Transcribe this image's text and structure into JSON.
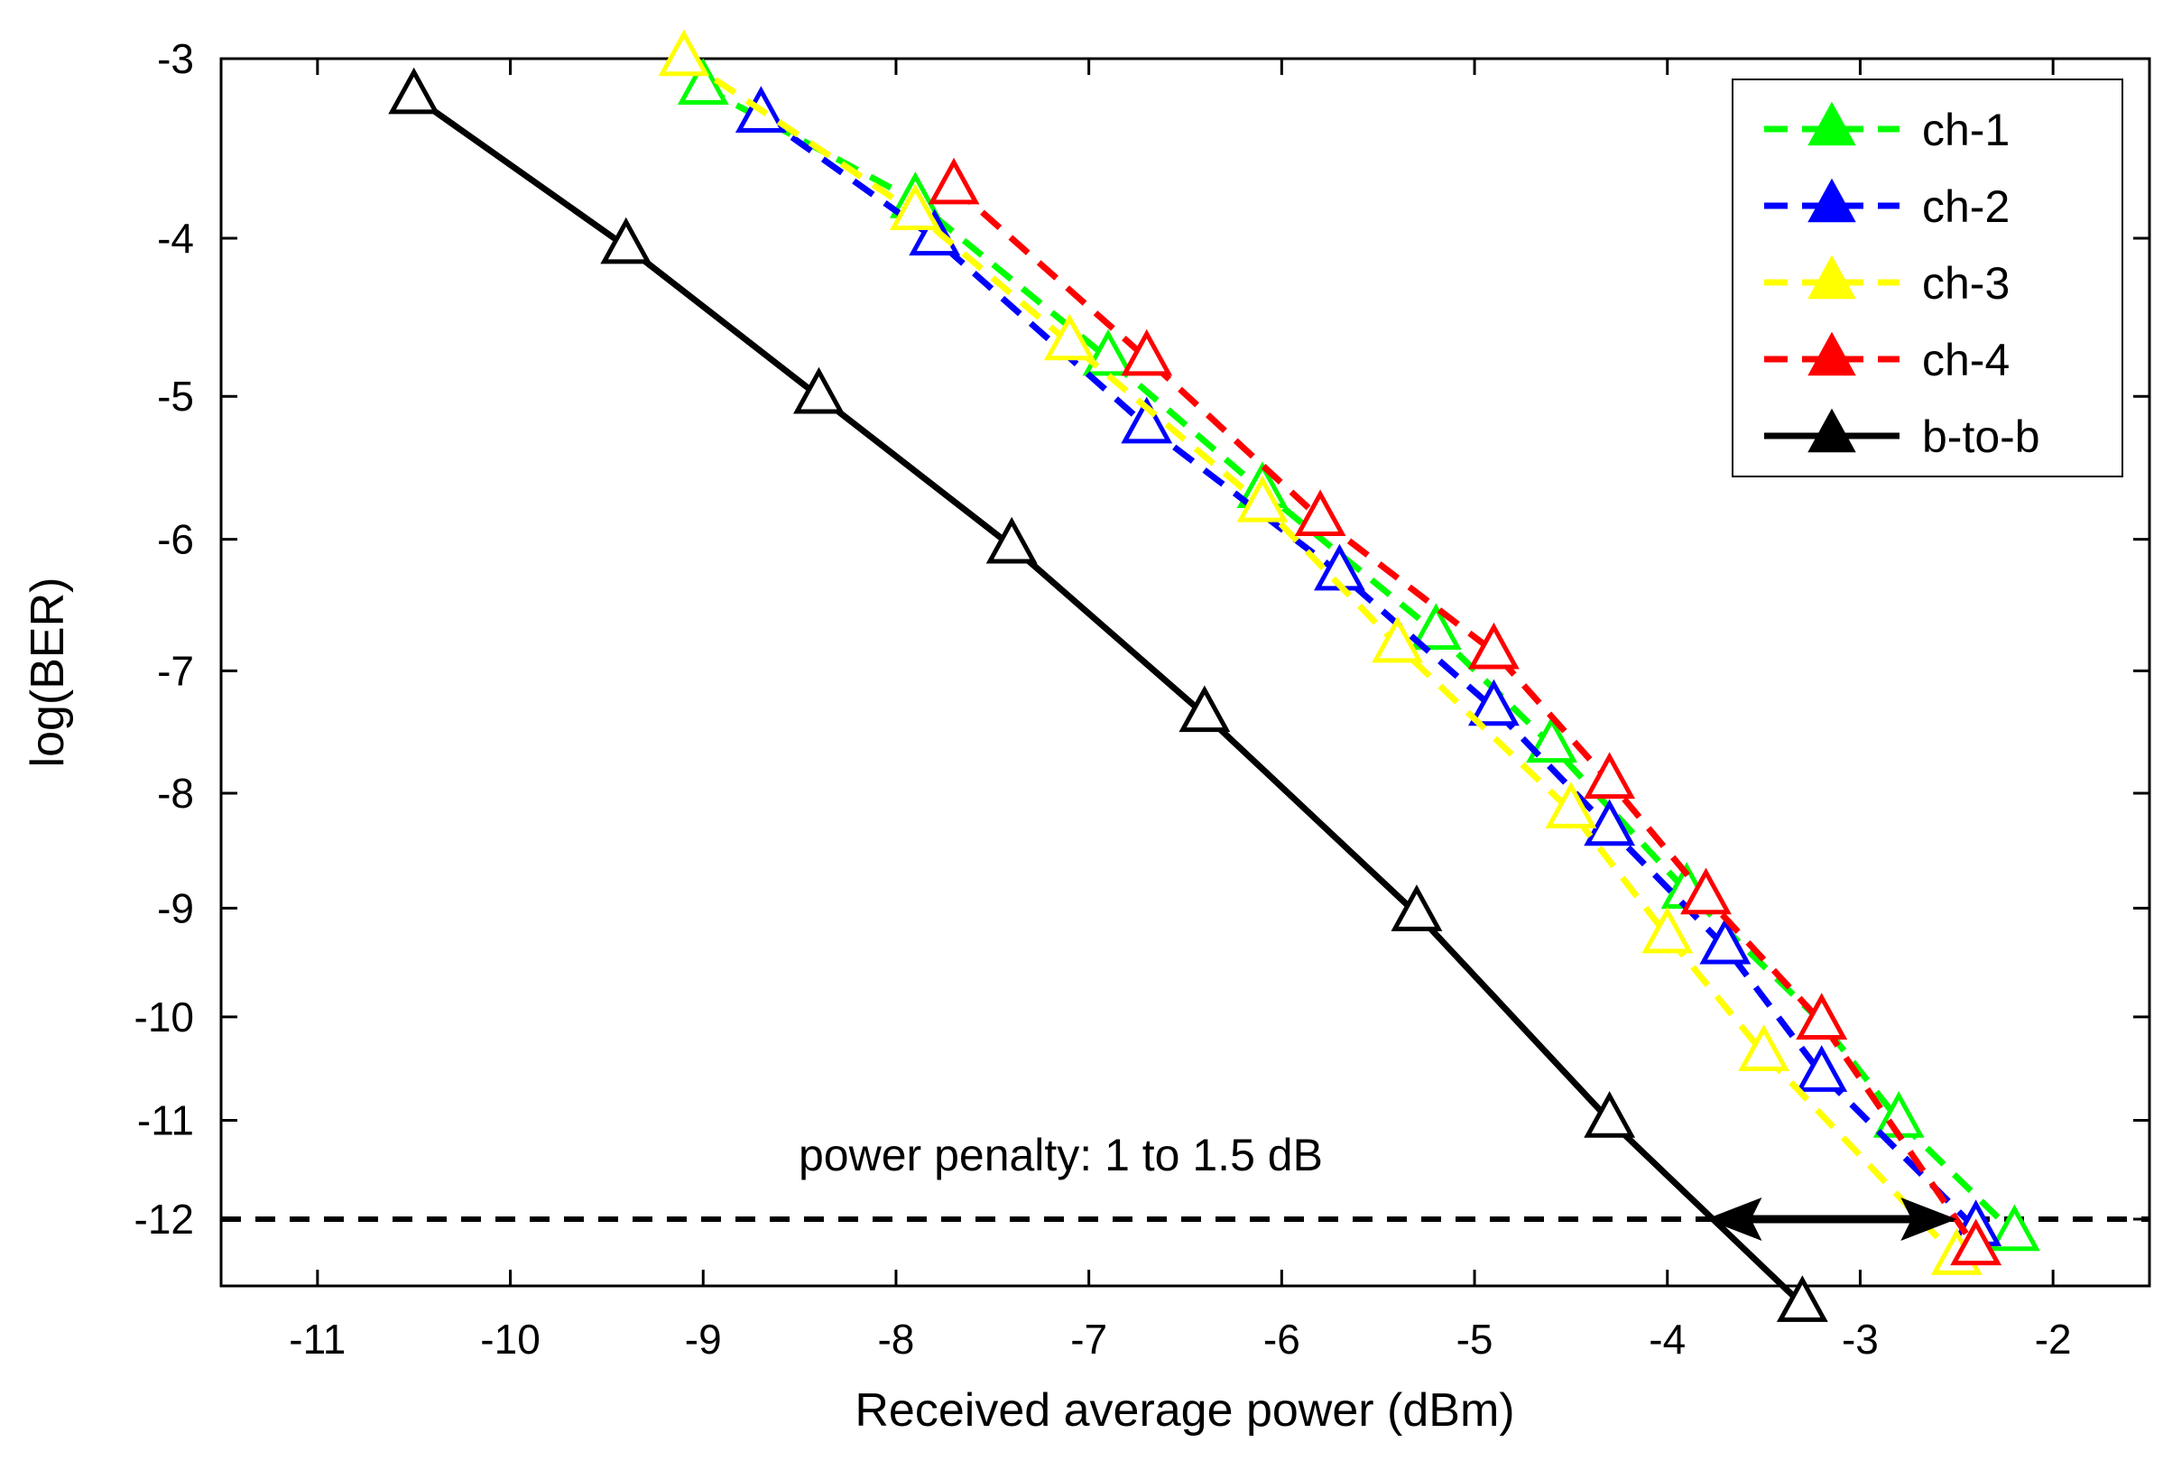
{
  "chart_data": {
    "type": "line",
    "title": "",
    "xlabel": "Received average power (dBm)",
    "ylabel": "log(BER)",
    "xlim": [
      -11.5,
      -1.5
    ],
    "xticks": [
      -11,
      -10,
      -9,
      -8,
      -7,
      -6,
      -5,
      -4,
      -3,
      -2
    ],
    "yticks": [
      -3,
      -4,
      -5,
      -6,
      -7,
      -8,
      -9,
      -10,
      -11,
      -12
    ],
    "grid": false,
    "legend_position": "top-right",
    "series": [
      {
        "name": "ch-1",
        "color": "#00ff00",
        "dash": "dashed",
        "x": [
          -9.0,
          -7.9,
          -6.9,
          -6.1,
          -5.2,
          -4.6,
          -3.9,
          -3.2,
          -2.8,
          -2.2
        ],
        "y": [
          -3.15,
          -3.78,
          -4.75,
          -5.65,
          -6.7,
          -7.6,
          -8.85,
          -10.05,
          -11.0,
          -12.15
        ]
      },
      {
        "name": "ch-2",
        "color": "#0000ff",
        "dash": "dashed",
        "x": [
          -8.7,
          -7.8,
          -6.7,
          -5.7,
          -4.9,
          -4.3,
          -3.7,
          -3.2,
          -2.4
        ],
        "y": [
          -3.3,
          -4.0,
          -5.2,
          -6.25,
          -7.3,
          -8.3,
          -9.35,
          -10.55,
          -12.1
        ]
      },
      {
        "name": "ch-3",
        "color": "#ffff00",
        "dash": "dashed",
        "x": [
          -9.1,
          -7.9,
          -7.1,
          -6.1,
          -5.4,
          -4.5,
          -4.0,
          -3.5,
          -2.5
        ],
        "y": [
          -3.0,
          -3.85,
          -4.65,
          -5.75,
          -6.8,
          -8.15,
          -9.25,
          -10.35,
          -12.4
        ]
      },
      {
        "name": "ch-4",
        "color": "#ff0000",
        "dash": "dashed",
        "x": [
          -7.7,
          -6.7,
          -5.8,
          -4.9,
          -4.3,
          -3.8,
          -3.2,
          -2.4
        ],
        "y": [
          -3.7,
          -4.75,
          -5.85,
          -6.85,
          -7.9,
          -8.9,
          -10.05,
          -12.3
        ]
      },
      {
        "name": "b-to-b",
        "color": "#000000",
        "dash": "solid",
        "x": [
          -10.5,
          -9.4,
          -8.4,
          -7.4,
          -6.4,
          -5.3,
          -4.3,
          -3.3
        ],
        "y": [
          -3.2,
          -4.05,
          -5.0,
          -6.05,
          -7.35,
          -9.05,
          -11.0,
          -12.9
        ]
      }
    ],
    "threshold": {
      "y": -12,
      "style": "dashed",
      "color": "#000000"
    },
    "penalty_arrow": {
      "x_from": -3.8,
      "x_to": -2.5,
      "y": -12
    },
    "annotation": "power penalty: 1 to 1.5 dB"
  }
}
